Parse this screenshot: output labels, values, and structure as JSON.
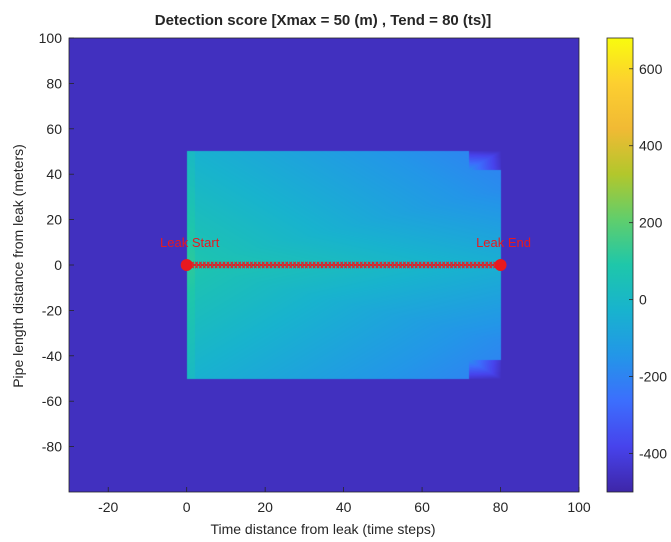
{
  "chart_data": {
    "type": "heatmap",
    "title": "Detection score [Xmax = 50 (m) , Tend = 80 (ts)]",
    "xlabel": "Time distance from leak (time steps)",
    "ylabel": "Pipe length distance from leak (meters)",
    "xlim": [
      -30,
      100
    ],
    "ylim": [
      -100,
      100
    ],
    "xticks": [
      -20,
      0,
      20,
      40,
      60,
      80,
      100
    ],
    "yticks": [
      -80,
      -60,
      -40,
      -20,
      0,
      20,
      40,
      60,
      80,
      100
    ],
    "colorbar": {
      "ticks": [
        -400,
        -200,
        0,
        200,
        400,
        600
      ],
      "range": [
        -500,
        680
      ],
      "colormap": "parula"
    },
    "background_value": -460,
    "region": {
      "x_range": [
        0,
        80
      ],
      "y_range": [
        -50,
        50
      ],
      "description": "score is highest near the leak start (x=0, y=0) and decreases with time and distance"
    },
    "annotations": [
      {
        "label": "Leak Start",
        "x": 0,
        "y": 0,
        "color": "#e8191f"
      },
      {
        "label": "Leak End",
        "x": 80,
        "y": 0,
        "color": "#e8191f"
      }
    ],
    "trajectory": {
      "x_from": 0,
      "x_to": 80,
      "y": 0,
      "marker": "x",
      "color": "#e8191f"
    }
  }
}
